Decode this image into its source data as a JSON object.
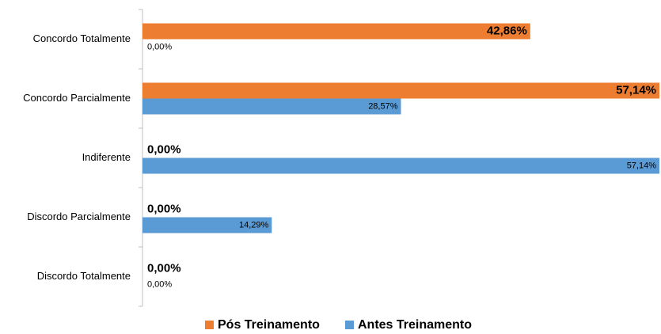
{
  "chart_data": {
    "type": "hbar",
    "categories": [
      "Concordo Totalmente",
      "Concordo Parcialmente",
      "Indiferente",
      "Discordo Parcialmente",
      "Discordo Totalmente"
    ],
    "series": [
      {
        "name": "Pós Treinamento",
        "color": "#ed7d31",
        "values": [
          42.86,
          57.14,
          0,
          0,
          0
        ],
        "value_labels": [
          "42,86%",
          "57,14%",
          "0,00%",
          "0,00%",
          "0,00%"
        ]
      },
      {
        "name": "Antes Treinamento",
        "color": "#5b9bd5",
        "values": [
          0,
          28.57,
          57.14,
          14.29,
          0
        ],
        "value_labels": [
          "0,00%",
          "28,57%",
          "57,14%",
          "14,29%",
          "0,00%"
        ]
      }
    ],
    "legend": "bottom"
  }
}
